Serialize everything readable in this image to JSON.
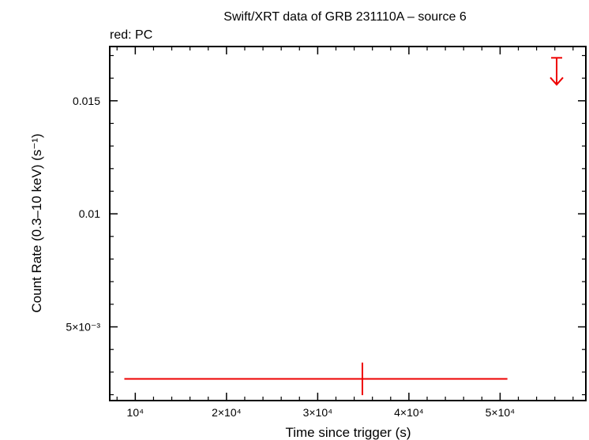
{
  "chart_data": {
    "type": "scatter",
    "title": "Swift/XRT data of GRB 231110A – source 6",
    "subtitle": "red: PC",
    "xlabel": "Time since trigger (s)",
    "ylabel": "Count Rate (0.3–10 keV) (s⁻¹)",
    "xlim": [
      7200,
      59400
    ],
    "ylim": [
      0.00174,
      0.0174
    ],
    "x_scale": "linear",
    "y_scale": "linear",
    "grid": false,
    "x_ticks": [
      {
        "value": 10000,
        "label": "10⁴"
      },
      {
        "value": 20000,
        "label": "2×10⁴"
      },
      {
        "value": 30000,
        "label": "3×10⁴"
      },
      {
        "value": 40000,
        "label": "4×10⁴"
      },
      {
        "value": 50000,
        "label": "5×10⁴"
      }
    ],
    "y_ticks": [
      {
        "value": 0.005,
        "label": "5×10⁻³"
      },
      {
        "value": 0.01,
        "label": "0.01"
      },
      {
        "value": 0.015,
        "label": "0.015"
      }
    ],
    "series": [
      {
        "name": "PC",
        "color": "#ee0000",
        "points": [
          {
            "x": 34900,
            "y": 0.0027,
            "x_err_minus": 26100,
            "x_err_plus": 15900,
            "y_err_minus": 0.00072,
            "y_err_plus": 0.00072
          }
        ],
        "upper_limits": [
          {
            "x": 56200,
            "y": 0.0169
          }
        ]
      }
    ]
  }
}
